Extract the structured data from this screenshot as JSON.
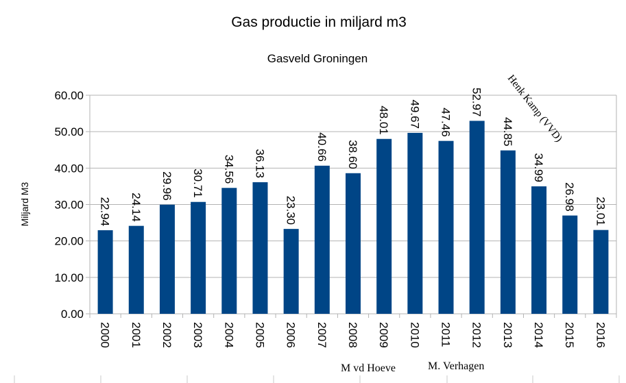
{
  "chart_data": {
    "type": "bar",
    "title": "Gas productie in miljard m3",
    "subtitle": "Gasveld Groningen",
    "xlabel": "",
    "ylabel": "Miljard M3",
    "ylim": [
      0,
      60
    ],
    "yticks": [
      "0.00",
      "10.00",
      "20.00",
      "30.00",
      "40.00",
      "50.00",
      "60.00"
    ],
    "grid": true,
    "legend": "none",
    "bar_color": "#004586",
    "categories": [
      "2000",
      "2001",
      "2002",
      "2003",
      "2004",
      "2005",
      "2006",
      "2007",
      "2008",
      "2009",
      "2010",
      "2011",
      "2012",
      "2013",
      "2014",
      "2015",
      "2016"
    ],
    "values": [
      22.94,
      24.14,
      29.96,
      30.71,
      34.56,
      36.13,
      23.3,
      40.66,
      38.6,
      48.01,
      49.67,
      47.46,
      52.97,
      44.85,
      34.99,
      26.98,
      23.01
    ],
    "data_labels": [
      "22.94",
      "24.14",
      "29.96",
      "30.71",
      "34.56",
      "36.13",
      "23.30",
      "40.66",
      "38.60",
      "48.01",
      "49.67",
      "47.46",
      "52.97",
      "44.85",
      "34.99",
      "26.98",
      "23.01"
    ],
    "annotations": [
      "M vd Hoeve",
      "M. Verhagen",
      "Henk Kamp (VVD)"
    ]
  }
}
